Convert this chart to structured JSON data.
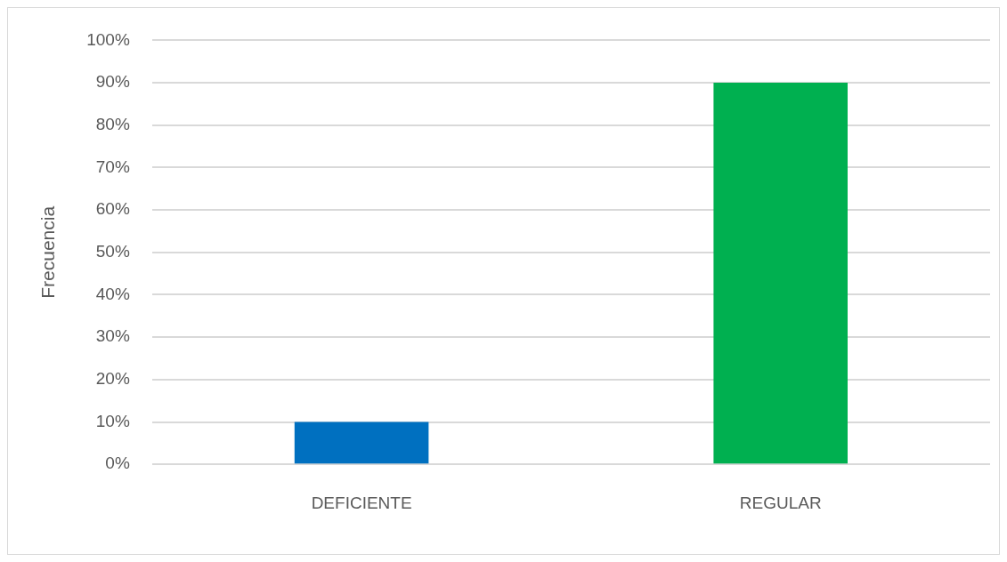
{
  "chart_data": {
    "type": "bar",
    "ylabel": "Frecuencia",
    "categories": [
      "DEFICIENTE",
      "REGULAR"
    ],
    "values": [
      10,
      90
    ],
    "colors": [
      "#0070c0",
      "#00b050"
    ],
    "ylim": [
      0,
      100
    ],
    "yticks": [
      {
        "value": 0,
        "label": "0%"
      },
      {
        "value": 10,
        "label": "10%"
      },
      {
        "value": 20,
        "label": "20%"
      },
      {
        "value": 30,
        "label": "30%"
      },
      {
        "value": 40,
        "label": "40%"
      },
      {
        "value": 50,
        "label": "50%"
      },
      {
        "value": 60,
        "label": "60%"
      },
      {
        "value": 70,
        "label": "70%"
      },
      {
        "value": 80,
        "label": "80%"
      },
      {
        "value": 90,
        "label": "90%"
      },
      {
        "value": 100,
        "label": "100%"
      }
    ],
    "grid": "y",
    "legend": false
  }
}
